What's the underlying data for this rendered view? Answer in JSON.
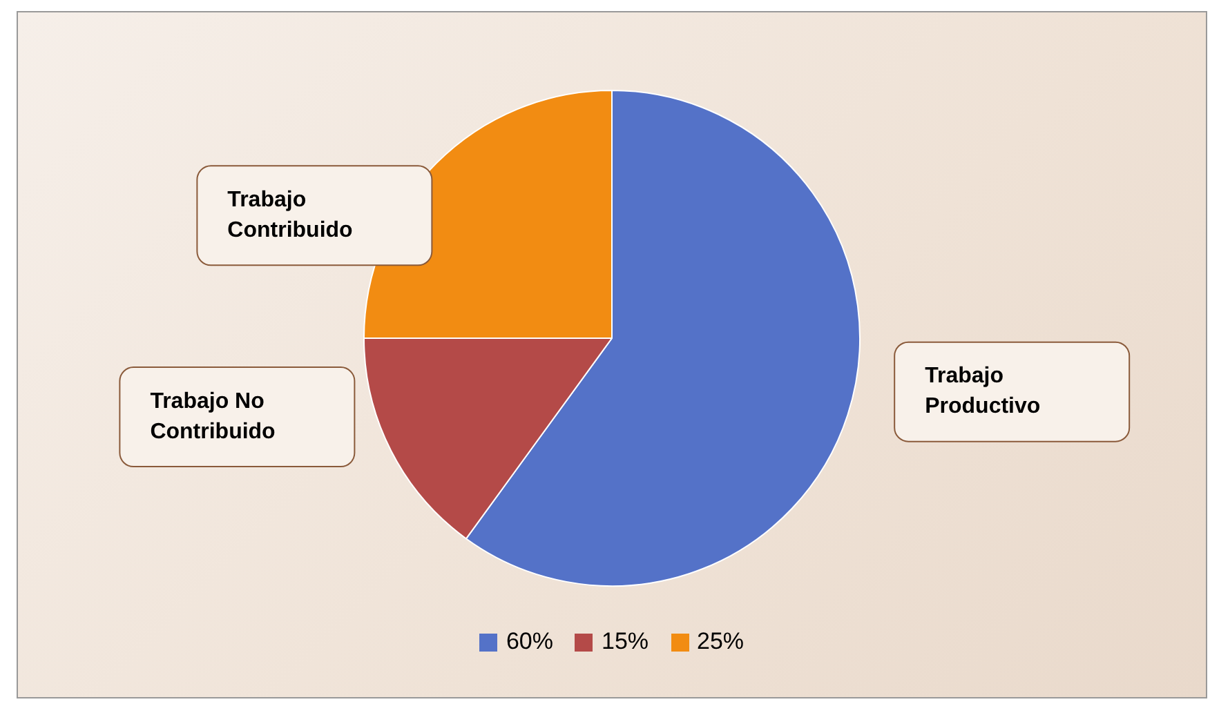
{
  "chart_data": {
    "type": "pie",
    "categories": [
      "60%",
      "15%",
      "25%"
    ],
    "values": [
      60,
      15,
      25
    ],
    "colors": [
      "#5472c8",
      "#b44a48",
      "#f28c12"
    ],
    "annotations": [
      "Trabajo Productivo",
      "Trabajo No Contribuido",
      "Trabajo Contribuido"
    ],
    "legend": "bottom"
  }
}
